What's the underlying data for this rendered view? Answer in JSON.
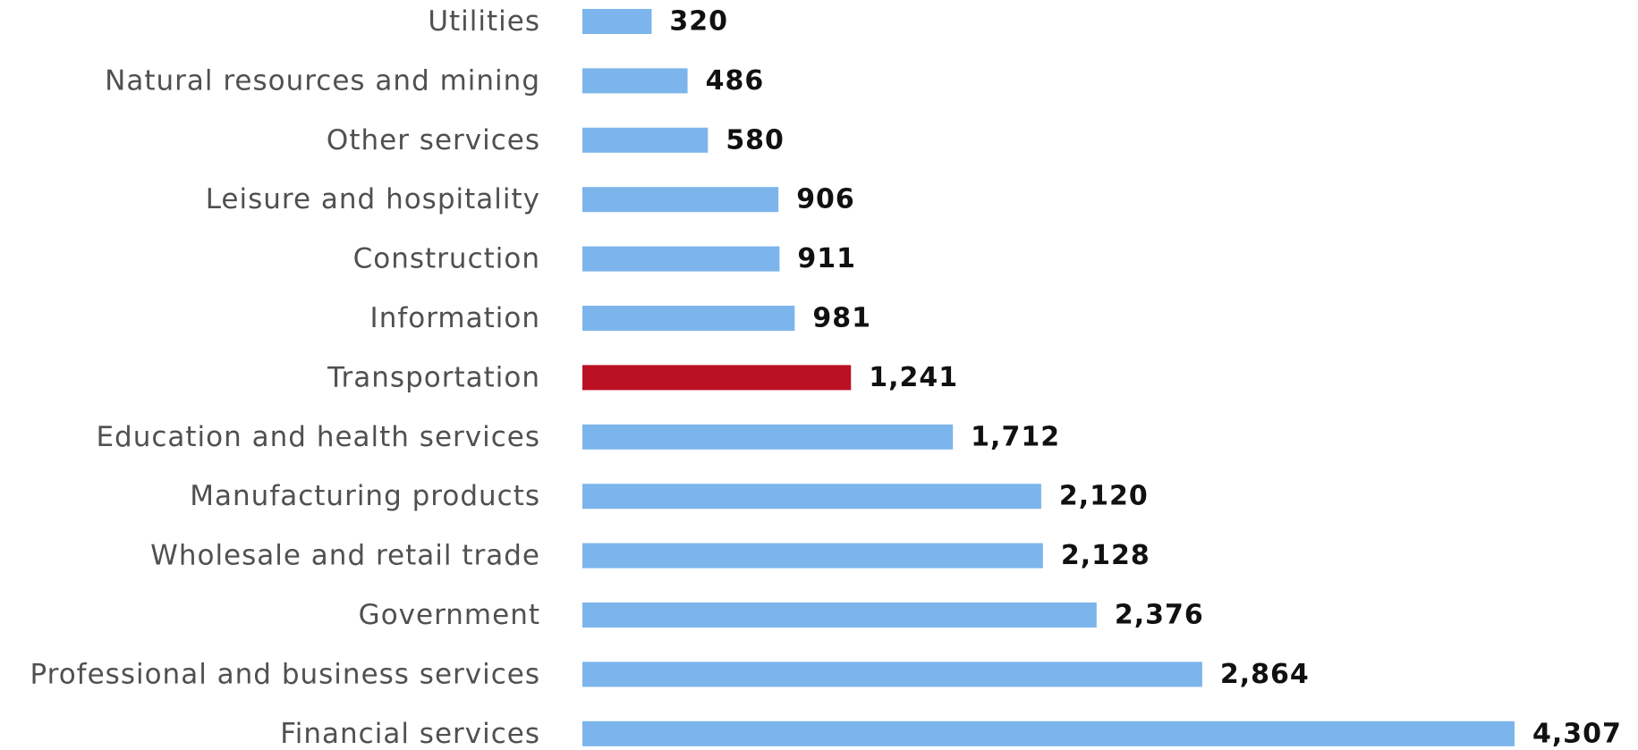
{
  "chart_data": {
    "type": "bar",
    "orientation": "horizontal",
    "categories": [
      "Utilities",
      "Natural resources and mining",
      "Other services",
      "Leisure and hospitality",
      "Construction",
      "Information",
      "Transportation",
      "Education and health services",
      "Manufacturing products",
      "Wholesale and retail trade",
      "Government",
      "Professional and business services",
      "Financial services"
    ],
    "values": [
      320,
      486,
      580,
      906,
      911,
      981,
      1241,
      1712,
      2120,
      2128,
      2376,
      2864,
      4307
    ],
    "value_labels": [
      "320",
      "486",
      "580",
      "906",
      "911",
      "981",
      "1,241",
      "1,712",
      "2,120",
      "2,128",
      "2,376",
      "2,864",
      "4,307"
    ],
    "highlight": "Transportation",
    "title": "",
    "xlabel": "",
    "ylabel": "",
    "xlim": [
      0,
      4307
    ],
    "grid": false,
    "legend": "none"
  },
  "colors": {
    "bar": "#7cb5ec",
    "highlight": "#bb1125",
    "label": "#505050",
    "value": "#111111"
  }
}
